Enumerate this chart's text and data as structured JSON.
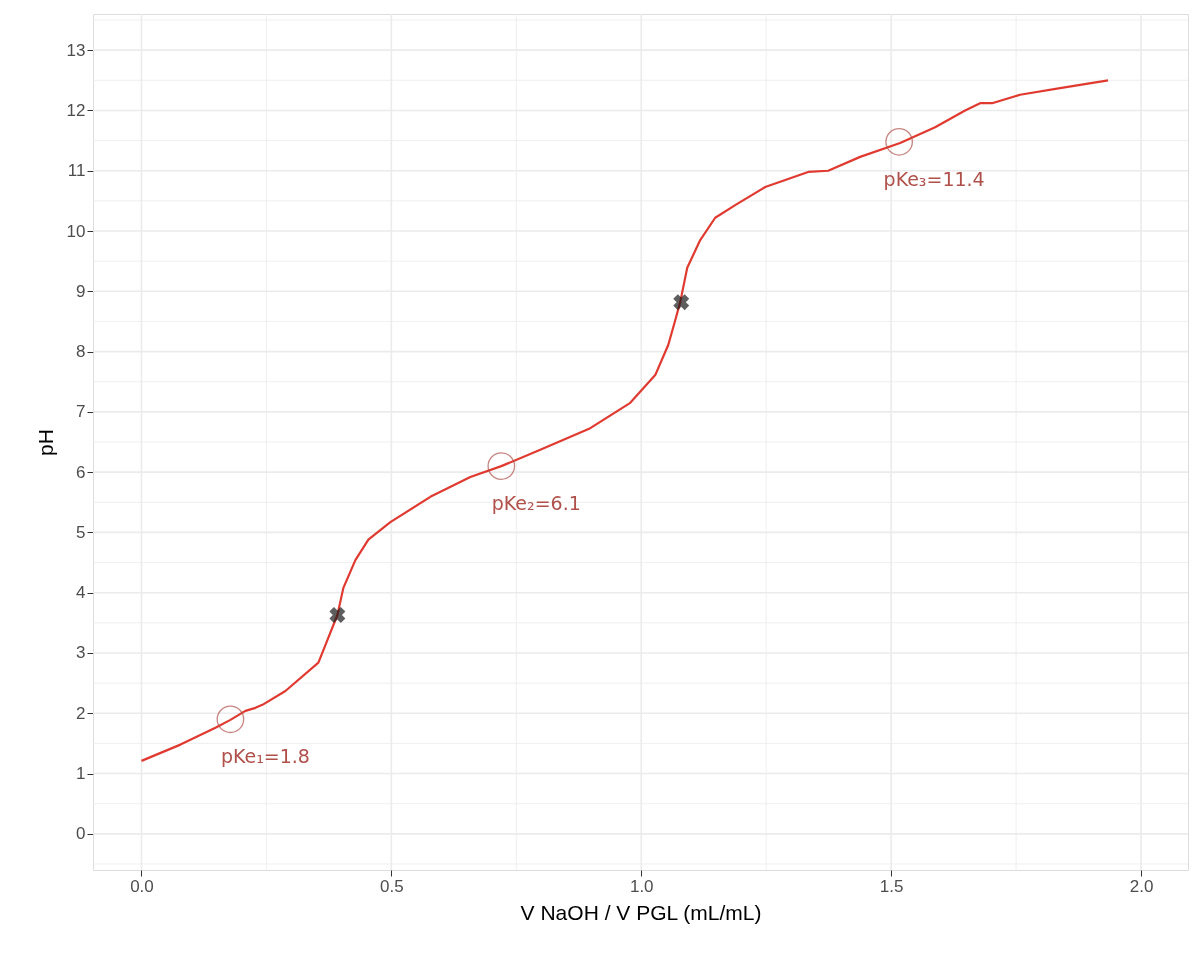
{
  "chart_data": {
    "type": "line",
    "xlabel": "V NaOH / V PGL (mL/mL)",
    "ylabel": "pH",
    "xlim": [
      -0.097,
      2.094
    ],
    "ylim": [
      -0.6,
      13.6
    ],
    "xticks": [
      {
        "value": 0,
        "label": "0.0"
      },
      0.5,
      {
        "value": 1,
        "label": "1.0"
      },
      1.5,
      {
        "value": 2,
        "label": "2.0"
      }
    ],
    "yticks": [
      0,
      1,
      2,
      3,
      4,
      5,
      6,
      7,
      8,
      9,
      10,
      11,
      12,
      13
    ],
    "grid": true,
    "line_style": "solid",
    "series": [
      {
        "color": "#e03a30",
        "marker": "none",
        "x": [
          0,
          0.078,
          0.148,
          0.178,
          0.208,
          0.228,
          0.242,
          0.288,
          0.354,
          0.368,
          0.392,
          0.404,
          0.428,
          0.454,
          0.498,
          0.578,
          0.658,
          0.72,
          0.798,
          0.898,
          0.978,
          1.028,
          1.054,
          1.068,
          1.078,
          1.092,
          1.118,
          1.148,
          1.188,
          1.248,
          1.334,
          1.374,
          1.438,
          1.518,
          1.588,
          1.648,
          1.678,
          1.702,
          1.758,
          1.838,
          1.934
        ],
        "values": [
          1.21,
          1.48,
          1.76,
          1.89,
          2.04,
          2.09,
          2.14,
          2.37,
          2.84,
          3.13,
          3.63,
          4.08,
          4.54,
          4.88,
          5.17,
          5.59,
          5.92,
          6.1,
          6.37,
          6.73,
          7.15,
          7.61,
          8.11,
          8.52,
          8.82,
          9.39,
          9.85,
          10.22,
          10.43,
          10.73,
          10.98,
          11.0,
          11.23,
          11.46,
          11.72,
          12.0,
          12.12,
          12.12,
          12.26,
          12.37,
          12.5
        ]
      },
      {
        "type": "scatter",
        "color": "#b0504a",
        "marker": "circle",
        "x": [
          0.178,
          0.72,
          1.516
        ],
        "values": [
          1.9,
          6.1,
          11.48
        ]
      },
      {
        "type": "scatter",
        "color": "#1a1a1a",
        "marker": "cross",
        "x": [
          0.392,
          1.08
        ],
        "values": [
          3.63,
          8.82
        ]
      }
    ],
    "annotations": [
      {
        "text": "pKe₁=1.8",
        "x": 0.178,
        "y": 1.9
      },
      {
        "text": "pKe₂=6.1",
        "x": 0.72,
        "y": 6.1
      },
      {
        "text": "pKe₃=11.4",
        "x": 1.516,
        "y": 11.48
      }
    ]
  }
}
